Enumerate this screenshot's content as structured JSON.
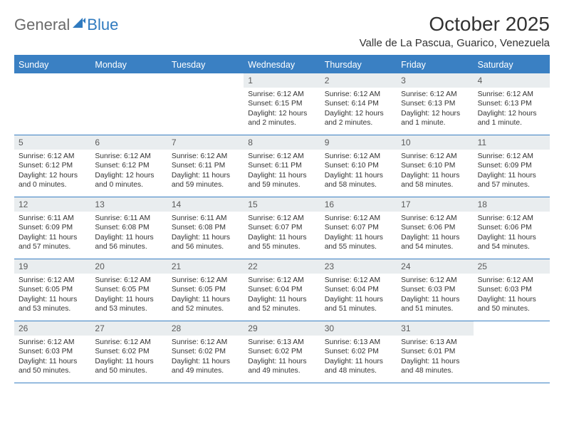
{
  "logo": {
    "part1": "General",
    "part2": "Blue"
  },
  "title": "October 2025",
  "location": "Valle de La Pascua, Guarico, Venezuela",
  "colors": {
    "header_bg": "#3a80c3",
    "date_bg": "#e9edef",
    "text": "#333333",
    "logo_gray": "#6a6a6a",
    "logo_blue": "#2f7abf"
  },
  "dayNames": [
    "Sunday",
    "Monday",
    "Tuesday",
    "Wednesday",
    "Thursday",
    "Friday",
    "Saturday"
  ],
  "weeks": [
    [
      {
        "empty": true
      },
      {
        "empty": true
      },
      {
        "empty": true
      },
      {
        "num": "1",
        "sunrise": "Sunrise: 6:12 AM",
        "sunset": "Sunset: 6:15 PM",
        "day1": "Daylight: 12 hours",
        "day2": "and 2 minutes."
      },
      {
        "num": "2",
        "sunrise": "Sunrise: 6:12 AM",
        "sunset": "Sunset: 6:14 PM",
        "day1": "Daylight: 12 hours",
        "day2": "and 2 minutes."
      },
      {
        "num": "3",
        "sunrise": "Sunrise: 6:12 AM",
        "sunset": "Sunset: 6:13 PM",
        "day1": "Daylight: 12 hours",
        "day2": "and 1 minute."
      },
      {
        "num": "4",
        "sunrise": "Sunrise: 6:12 AM",
        "sunset": "Sunset: 6:13 PM",
        "day1": "Daylight: 12 hours",
        "day2": "and 1 minute."
      }
    ],
    [
      {
        "num": "5",
        "sunrise": "Sunrise: 6:12 AM",
        "sunset": "Sunset: 6:12 PM",
        "day1": "Daylight: 12 hours",
        "day2": "and 0 minutes."
      },
      {
        "num": "6",
        "sunrise": "Sunrise: 6:12 AM",
        "sunset": "Sunset: 6:12 PM",
        "day1": "Daylight: 12 hours",
        "day2": "and 0 minutes."
      },
      {
        "num": "7",
        "sunrise": "Sunrise: 6:12 AM",
        "sunset": "Sunset: 6:11 PM",
        "day1": "Daylight: 11 hours",
        "day2": "and 59 minutes."
      },
      {
        "num": "8",
        "sunrise": "Sunrise: 6:12 AM",
        "sunset": "Sunset: 6:11 PM",
        "day1": "Daylight: 11 hours",
        "day2": "and 59 minutes."
      },
      {
        "num": "9",
        "sunrise": "Sunrise: 6:12 AM",
        "sunset": "Sunset: 6:10 PM",
        "day1": "Daylight: 11 hours",
        "day2": "and 58 minutes."
      },
      {
        "num": "10",
        "sunrise": "Sunrise: 6:12 AM",
        "sunset": "Sunset: 6:10 PM",
        "day1": "Daylight: 11 hours",
        "day2": "and 58 minutes."
      },
      {
        "num": "11",
        "sunrise": "Sunrise: 6:12 AM",
        "sunset": "Sunset: 6:09 PM",
        "day1": "Daylight: 11 hours",
        "day2": "and 57 minutes."
      }
    ],
    [
      {
        "num": "12",
        "sunrise": "Sunrise: 6:11 AM",
        "sunset": "Sunset: 6:09 PM",
        "day1": "Daylight: 11 hours",
        "day2": "and 57 minutes."
      },
      {
        "num": "13",
        "sunrise": "Sunrise: 6:11 AM",
        "sunset": "Sunset: 6:08 PM",
        "day1": "Daylight: 11 hours",
        "day2": "and 56 minutes."
      },
      {
        "num": "14",
        "sunrise": "Sunrise: 6:11 AM",
        "sunset": "Sunset: 6:08 PM",
        "day1": "Daylight: 11 hours",
        "day2": "and 56 minutes."
      },
      {
        "num": "15",
        "sunrise": "Sunrise: 6:12 AM",
        "sunset": "Sunset: 6:07 PM",
        "day1": "Daylight: 11 hours",
        "day2": "and 55 minutes."
      },
      {
        "num": "16",
        "sunrise": "Sunrise: 6:12 AM",
        "sunset": "Sunset: 6:07 PM",
        "day1": "Daylight: 11 hours",
        "day2": "and 55 minutes."
      },
      {
        "num": "17",
        "sunrise": "Sunrise: 6:12 AM",
        "sunset": "Sunset: 6:06 PM",
        "day1": "Daylight: 11 hours",
        "day2": "and 54 minutes."
      },
      {
        "num": "18",
        "sunrise": "Sunrise: 6:12 AM",
        "sunset": "Sunset: 6:06 PM",
        "day1": "Daylight: 11 hours",
        "day2": "and 54 minutes."
      }
    ],
    [
      {
        "num": "19",
        "sunrise": "Sunrise: 6:12 AM",
        "sunset": "Sunset: 6:05 PM",
        "day1": "Daylight: 11 hours",
        "day2": "and 53 minutes."
      },
      {
        "num": "20",
        "sunrise": "Sunrise: 6:12 AM",
        "sunset": "Sunset: 6:05 PM",
        "day1": "Daylight: 11 hours",
        "day2": "and 53 minutes."
      },
      {
        "num": "21",
        "sunrise": "Sunrise: 6:12 AM",
        "sunset": "Sunset: 6:05 PM",
        "day1": "Daylight: 11 hours",
        "day2": "and 52 minutes."
      },
      {
        "num": "22",
        "sunrise": "Sunrise: 6:12 AM",
        "sunset": "Sunset: 6:04 PM",
        "day1": "Daylight: 11 hours",
        "day2": "and 52 minutes."
      },
      {
        "num": "23",
        "sunrise": "Sunrise: 6:12 AM",
        "sunset": "Sunset: 6:04 PM",
        "day1": "Daylight: 11 hours",
        "day2": "and 51 minutes."
      },
      {
        "num": "24",
        "sunrise": "Sunrise: 6:12 AM",
        "sunset": "Sunset: 6:03 PM",
        "day1": "Daylight: 11 hours",
        "day2": "and 51 minutes."
      },
      {
        "num": "25",
        "sunrise": "Sunrise: 6:12 AM",
        "sunset": "Sunset: 6:03 PM",
        "day1": "Daylight: 11 hours",
        "day2": "and 50 minutes."
      }
    ],
    [
      {
        "num": "26",
        "sunrise": "Sunrise: 6:12 AM",
        "sunset": "Sunset: 6:03 PM",
        "day1": "Daylight: 11 hours",
        "day2": "and 50 minutes."
      },
      {
        "num": "27",
        "sunrise": "Sunrise: 6:12 AM",
        "sunset": "Sunset: 6:02 PM",
        "day1": "Daylight: 11 hours",
        "day2": "and 50 minutes."
      },
      {
        "num": "28",
        "sunrise": "Sunrise: 6:12 AM",
        "sunset": "Sunset: 6:02 PM",
        "day1": "Daylight: 11 hours",
        "day2": "and 49 minutes."
      },
      {
        "num": "29",
        "sunrise": "Sunrise: 6:13 AM",
        "sunset": "Sunset: 6:02 PM",
        "day1": "Daylight: 11 hours",
        "day2": "and 49 minutes."
      },
      {
        "num": "30",
        "sunrise": "Sunrise: 6:13 AM",
        "sunset": "Sunset: 6:02 PM",
        "day1": "Daylight: 11 hours",
        "day2": "and 48 minutes."
      },
      {
        "num": "31",
        "sunrise": "Sunrise: 6:13 AM",
        "sunset": "Sunset: 6:01 PM",
        "day1": "Daylight: 11 hours",
        "day2": "and 48 minutes."
      },
      {
        "empty": true
      }
    ]
  ]
}
